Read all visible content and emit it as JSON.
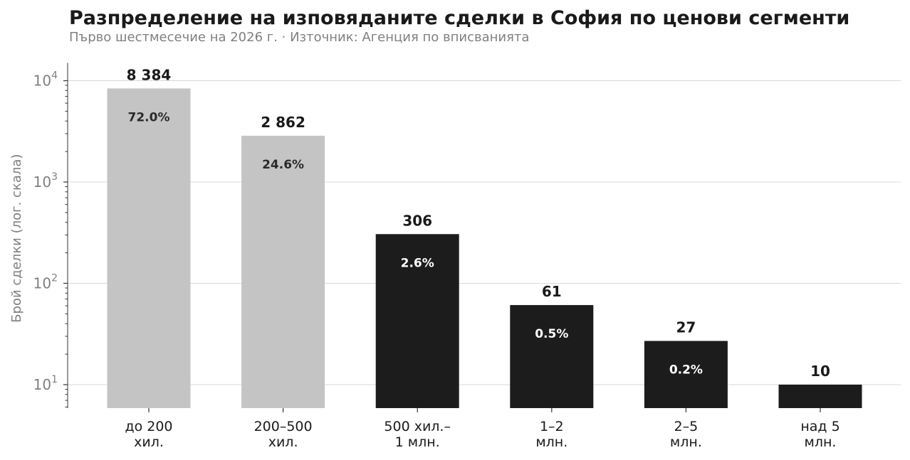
{
  "chart_data": {
    "type": "bar",
    "title": "Разпределение на изповяданите сделки в София по ценови сегменти",
    "subtitle": "Първо шестмесечие на 2026 г.  ·  Източник: Агенция по вписванията",
    "ylabel": "Брой сделки (лог. скала)",
    "xlabel": "",
    "yscale": "log",
    "ylim": [
      6,
      15000
    ],
    "grid": "horizontal",
    "yticks": [
      {
        "base": "10",
        "exp": "1",
        "value": 10
      },
      {
        "base": "10",
        "exp": "2",
        "value": 100
      },
      {
        "base": "10",
        "exp": "3",
        "value": 1000
      },
      {
        "base": "10",
        "exp": "4",
        "value": 10000
      }
    ],
    "categories": [
      [
        "до 200",
        "хил."
      ],
      [
        "200–500",
        "хил."
      ],
      [
        "500 хил.–",
        "1 млн."
      ],
      [
        "1–2",
        "млн."
      ],
      [
        "2–5",
        "млн."
      ],
      [
        "над 5",
        "млн."
      ]
    ],
    "values": [
      8384,
      2862,
      306,
      61,
      27,
      10
    ],
    "value_labels": [
      "8 384",
      "2 862",
      "306",
      "61",
      "27",
      "10"
    ],
    "percent_labels": [
      "72.0%",
      "24.6%",
      "2.6%",
      "0.5%",
      "0.2%",
      ""
    ],
    "colors": {
      "highlight": "#c4c4c4",
      "default": "#1c1c1c",
      "pct_on_light": "#2a2a2a",
      "pct_on_dark": "#ffffff",
      "grid": "#d9d9d9",
      "axis": "#333333"
    },
    "highlighted": [
      0,
      1
    ]
  }
}
